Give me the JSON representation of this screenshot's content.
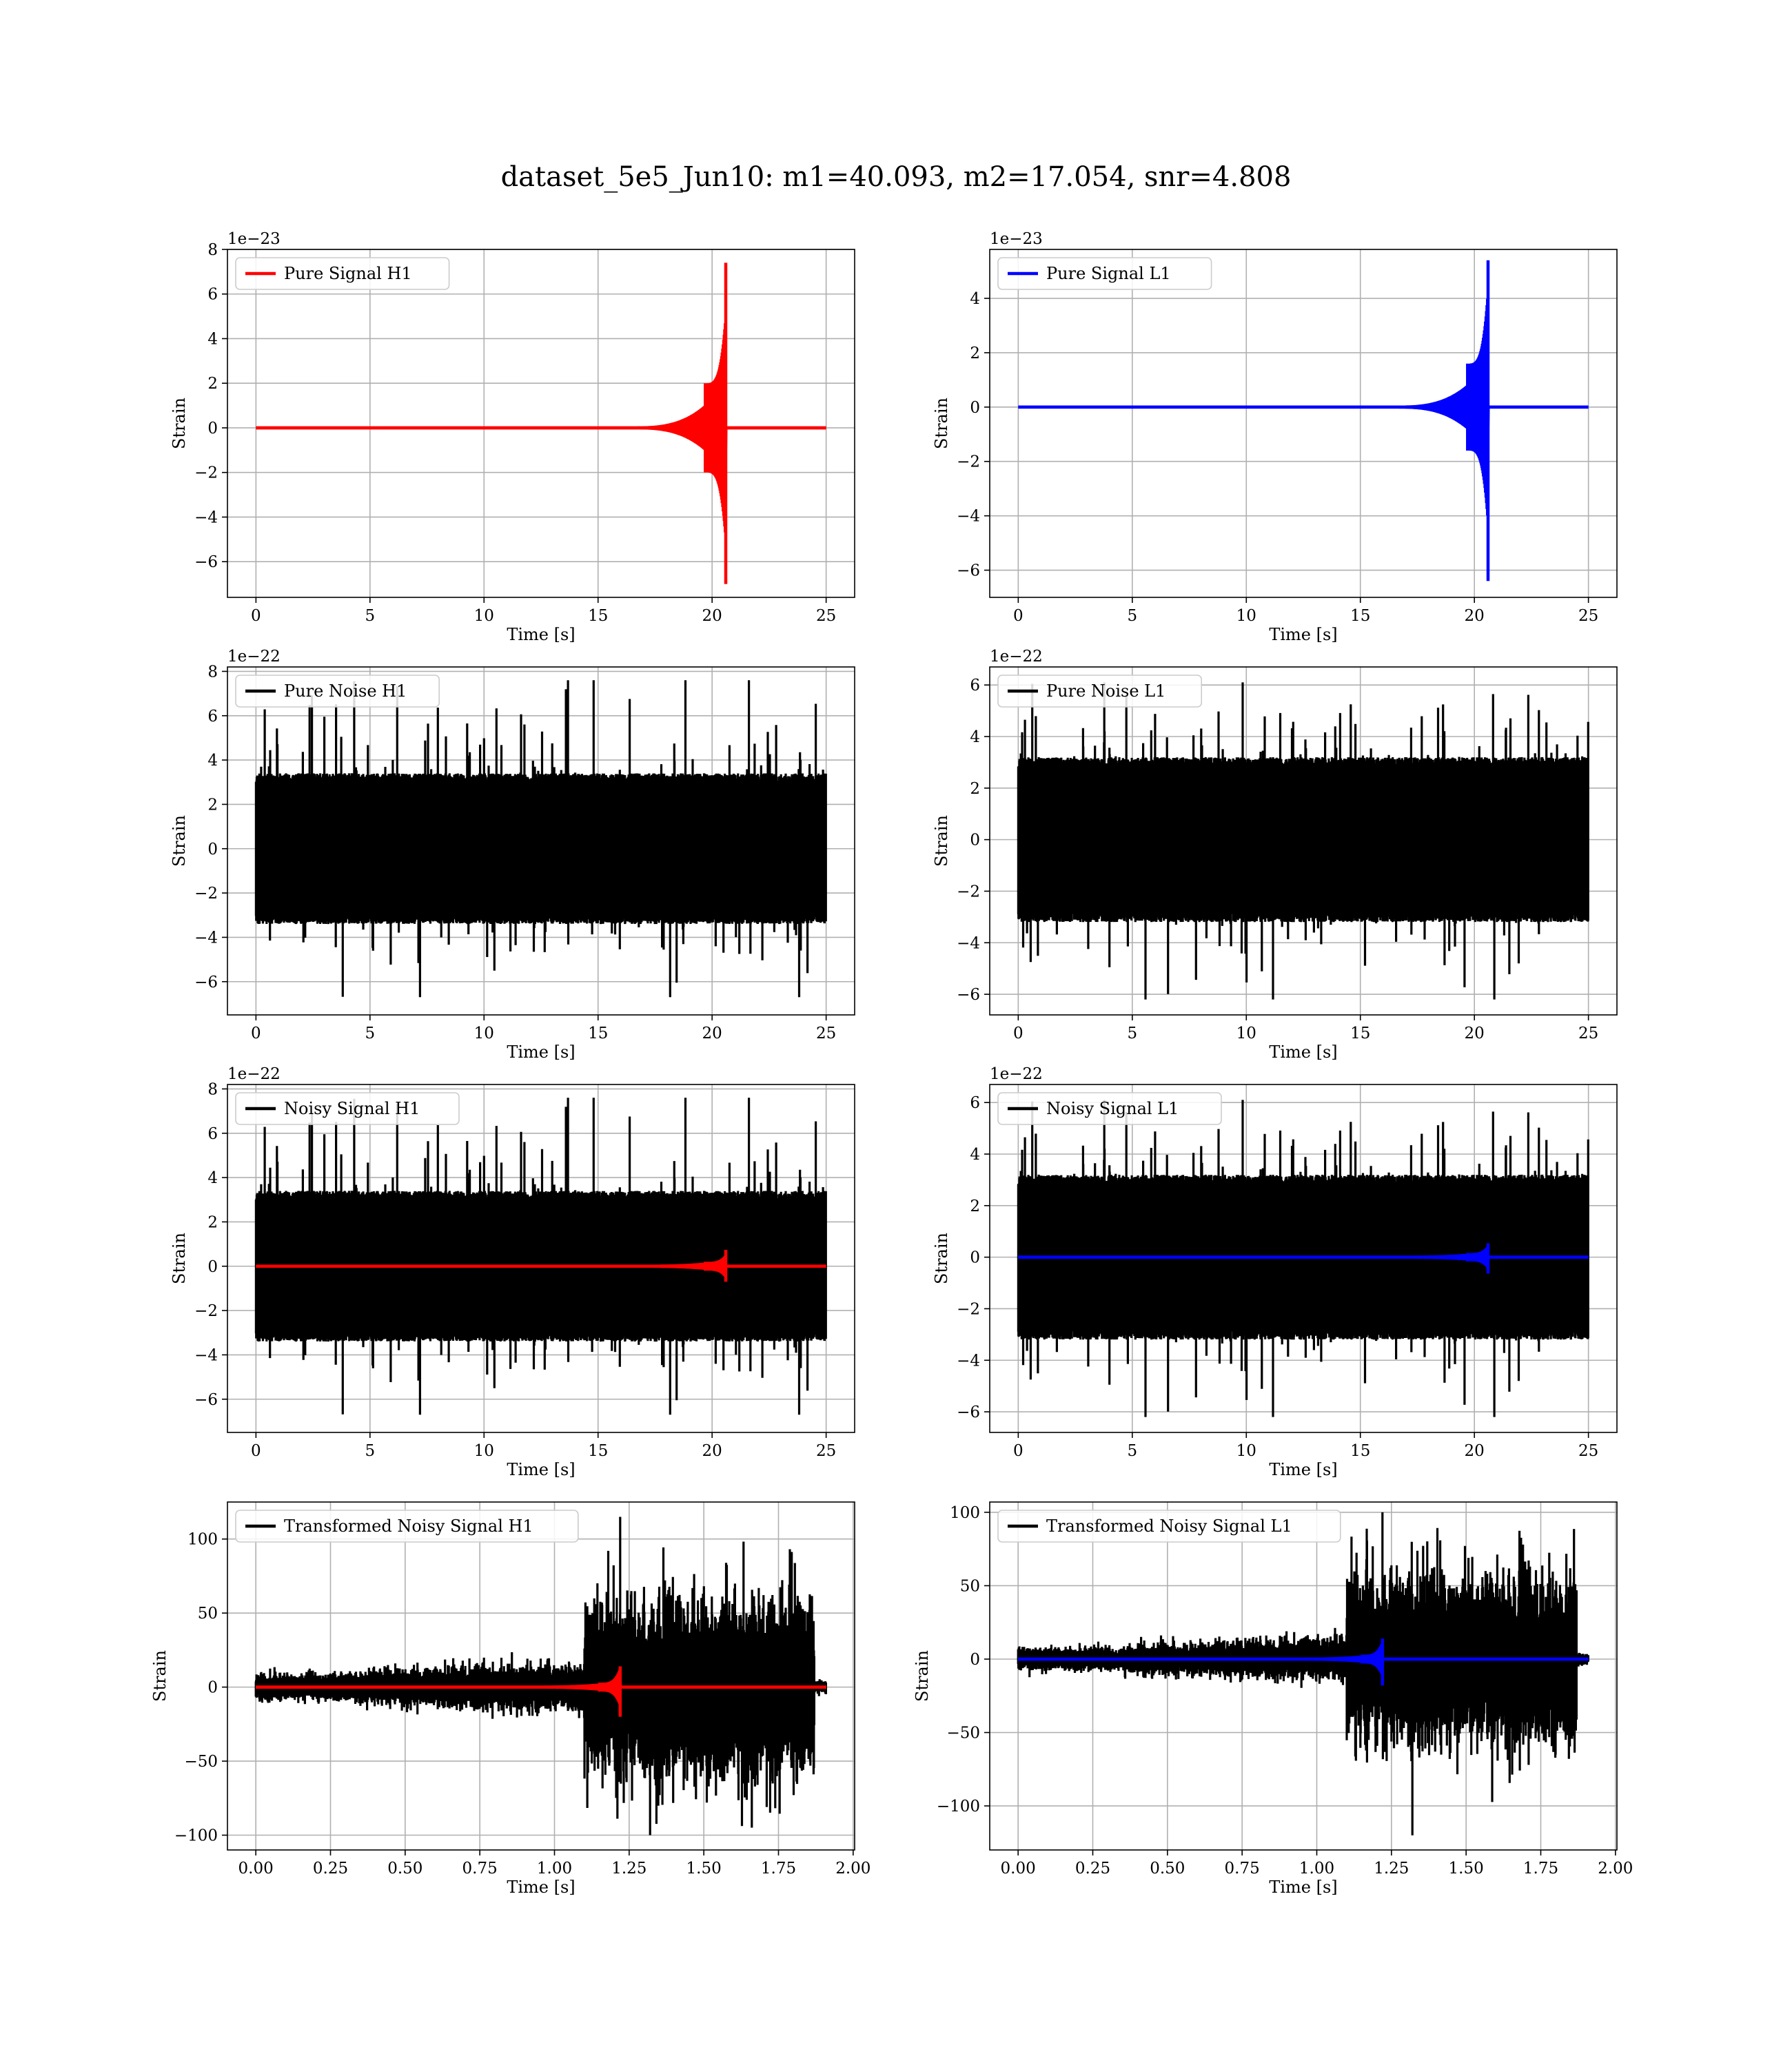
{
  "figure": {
    "title": "dataset_5e5_Jun10: m1=40.093, m2=17.054, snr=4.808"
  },
  "chart_data": [
    {
      "id": "pure-signal-h1",
      "type": "line",
      "ylabel": "Strain",
      "xlabel": "Time [s]",
      "offset_text": "1e−23",
      "xlim": [
        -1.25,
        26.25
      ],
      "ylim": [
        -7.6,
        8.0
      ],
      "xticks": [
        0,
        5,
        10,
        15,
        20,
        25
      ],
      "xtick_labels": [
        "0",
        "5",
        "10",
        "15",
        "20",
        "25"
      ],
      "yticks": [
        -6,
        -4,
        -2,
        0,
        2,
        4,
        6,
        8
      ],
      "ytick_labels": [
        "−6",
        "−4",
        "−2",
        "0",
        "2",
        "4",
        "6",
        "8"
      ],
      "series": [
        {
          "name": "Pure Signal H1",
          "color": "#ff0000",
          "kind": "chirp",
          "t_start": 0,
          "t_end": 25,
          "t_merge": 20.6,
          "peak_pos": 7.4,
          "peak_neg": -7.0,
          "inspiral_amp": 2.0,
          "tail_amp": 0.0
        }
      ]
    },
    {
      "id": "pure-signal-l1",
      "type": "line",
      "ylabel": "Strain",
      "xlabel": "Time [s]",
      "offset_text": "1e−23",
      "xlim": [
        -1.25,
        26.25
      ],
      "ylim": [
        -7.0,
        5.8
      ],
      "xticks": [
        0,
        5,
        10,
        15,
        20,
        25
      ],
      "xtick_labels": [
        "0",
        "5",
        "10",
        "15",
        "20",
        "25"
      ],
      "yticks": [
        -6,
        -4,
        -2,
        0,
        2,
        4
      ],
      "ytick_labels": [
        "−6",
        "−4",
        "−2",
        "0",
        "2",
        "4"
      ],
      "series": [
        {
          "name": "Pure Signal L1",
          "color": "#0000ff",
          "kind": "chirp",
          "t_start": 0,
          "t_end": 25,
          "t_merge": 20.6,
          "peak_pos": 5.4,
          "peak_neg": -6.4,
          "inspiral_amp": 1.6,
          "tail_amp": 0.0
        }
      ]
    },
    {
      "id": "pure-noise-h1",
      "type": "line",
      "ylabel": "Strain",
      "xlabel": "Time [s]",
      "offset_text": "1e−22",
      "xlim": [
        -1.25,
        26.25
      ],
      "ylim": [
        -7.5,
        8.2
      ],
      "xticks": [
        0,
        5,
        10,
        15,
        20,
        25
      ],
      "xtick_labels": [
        "0",
        "5",
        "10",
        "15",
        "20",
        "25"
      ],
      "yticks": [
        -6,
        -4,
        -2,
        0,
        2,
        4,
        6,
        8
      ],
      "ytick_labels": [
        "−6",
        "−4",
        "−2",
        "0",
        "2",
        "4",
        "6",
        "8"
      ],
      "series": [
        {
          "name": "Pure Noise H1",
          "color": "#000000",
          "kind": "noise",
          "t_start": 0,
          "t_end": 25,
          "band": 3.4,
          "max": 7.6,
          "min": -6.7,
          "seed": 11
        }
      ]
    },
    {
      "id": "pure-noise-l1",
      "type": "line",
      "ylabel": "Strain",
      "xlabel": "Time [s]",
      "offset_text": "1e−22",
      "xlim": [
        -1.25,
        26.25
      ],
      "ylim": [
        -6.8,
        6.7
      ],
      "xticks": [
        0,
        5,
        10,
        15,
        20,
        25
      ],
      "xtick_labels": [
        "0",
        "5",
        "10",
        "15",
        "20",
        "25"
      ],
      "yticks": [
        -6,
        -4,
        -2,
        0,
        2,
        4,
        6
      ],
      "ytick_labels": [
        "−6",
        "−4",
        "−2",
        "0",
        "2",
        "4",
        "6"
      ],
      "series": [
        {
          "name": "Pure Noise L1",
          "color": "#000000",
          "kind": "noise",
          "t_start": 0,
          "t_end": 25,
          "band": 3.2,
          "max": 6.1,
          "min": -6.2,
          "seed": 23
        }
      ]
    },
    {
      "id": "noisy-signal-h1",
      "type": "line",
      "ylabel": "Strain",
      "xlabel": "Time [s]",
      "offset_text": "1e−22",
      "xlim": [
        -1.25,
        26.25
      ],
      "ylim": [
        -7.5,
        8.2
      ],
      "xticks": [
        0,
        5,
        10,
        15,
        20,
        25
      ],
      "xtick_labels": [
        "0",
        "5",
        "10",
        "15",
        "20",
        "25"
      ],
      "yticks": [
        -6,
        -4,
        -2,
        0,
        2,
        4,
        6,
        8
      ],
      "ytick_labels": [
        "−6",
        "−4",
        "−2",
        "0",
        "2",
        "4",
        "6",
        "8"
      ],
      "series": [
        {
          "name": "Noisy Signal H1",
          "color": "#000000",
          "kind": "noise",
          "t_start": 0,
          "t_end": 25,
          "band": 3.4,
          "max": 7.6,
          "min": -6.7,
          "seed": 11
        },
        {
          "name": "",
          "color": "#ff0000",
          "kind": "chirp",
          "t_start": 0,
          "t_end": 25,
          "t_merge": 20.6,
          "peak_pos": 0.74,
          "peak_neg": -0.7,
          "inspiral_amp": 0.2,
          "tail_amp": 0.0
        }
      ]
    },
    {
      "id": "noisy-signal-l1",
      "type": "line",
      "ylabel": "Strain",
      "xlabel": "Time [s]",
      "offset_text": "1e−22",
      "xlim": [
        -1.25,
        26.25
      ],
      "ylim": [
        -6.8,
        6.7
      ],
      "xticks": [
        0,
        5,
        10,
        15,
        20,
        25
      ],
      "xtick_labels": [
        "0",
        "5",
        "10",
        "15",
        "20",
        "25"
      ],
      "yticks": [
        -6,
        -4,
        -2,
        0,
        2,
        4,
        6
      ],
      "ytick_labels": [
        "−6",
        "−4",
        "−2",
        "0",
        "2",
        "4",
        "6"
      ],
      "series": [
        {
          "name": "Noisy Signal L1",
          "color": "#000000",
          "kind": "noise",
          "t_start": 0,
          "t_end": 25,
          "band": 3.2,
          "max": 6.1,
          "min": -6.2,
          "seed": 23
        },
        {
          "name": "",
          "color": "#0000ff",
          "kind": "chirp",
          "t_start": 0,
          "t_end": 25,
          "t_merge": 20.6,
          "peak_pos": 0.54,
          "peak_neg": -0.64,
          "inspiral_amp": 0.16,
          "tail_amp": 0.0
        }
      ]
    },
    {
      "id": "transformed-noisy-signal-h1",
      "type": "line",
      "ylabel": "Strain",
      "xlabel": "Time [s]",
      "offset_text": "",
      "xlim": [
        -0.095,
        2.005
      ],
      "ylim": [
        -110,
        125
      ],
      "xticks": [
        0,
        0.25,
        0.5,
        0.75,
        1.0,
        1.25,
        1.5,
        1.75,
        2.0
      ],
      "xtick_labels": [
        "0.00",
        "0.25",
        "0.50",
        "0.75",
        "1.00",
        "1.25",
        "1.50",
        "1.75",
        "2.00"
      ],
      "yticks": [
        -100,
        -50,
        0,
        50,
        100
      ],
      "ytick_labels": [
        "−100",
        "−50",
        "0",
        "50",
        "100"
      ],
      "series": [
        {
          "name": "Transformed Noisy Signal H1",
          "color": "#000000",
          "kind": "whitened",
          "t_start": 0,
          "t_end": 1.91,
          "t_jump": 1.1,
          "t_end_loud": 1.87,
          "band_quiet": 8,
          "band_loud": 38,
          "max": 115,
          "min": -100,
          "seed": 5
        },
        {
          "name": "",
          "color": "#ff0000",
          "kind": "chirp",
          "t_start": 0,
          "t_end": 1.91,
          "t_merge": 1.22,
          "peak_pos": 14,
          "peak_neg": -20,
          "inspiral_amp": 3,
          "tail_amp": 0.0
        }
      ]
    },
    {
      "id": "transformed-noisy-signal-l1",
      "type": "line",
      "ylabel": "Strain",
      "xlabel": "Time [s]",
      "offset_text": "",
      "xlim": [
        -0.095,
        2.005
      ],
      "ylim": [
        -130,
        107
      ],
      "xticks": [
        0,
        0.25,
        0.5,
        0.75,
        1.0,
        1.25,
        1.5,
        1.75,
        2.0
      ],
      "xtick_labels": [
        "0.00",
        "0.25",
        "0.50",
        "0.75",
        "1.00",
        "1.25",
        "1.50",
        "1.75",
        "2.00"
      ],
      "yticks": [
        -100,
        -50,
        0,
        50,
        100
      ],
      "ytick_labels": [
        "−100",
        "−50",
        "0",
        "50",
        "100"
      ],
      "series": [
        {
          "name": "Transformed Noisy Signal L1",
          "color": "#000000",
          "kind": "whitened",
          "t_start": 0,
          "t_end": 1.91,
          "t_jump": 1.1,
          "t_end_loud": 1.87,
          "band_quiet": 7,
          "band_loud": 36,
          "max": 100,
          "min": -120,
          "seed": 9
        },
        {
          "name": "",
          "color": "#0000ff",
          "kind": "chirp",
          "t_start": 0,
          "t_end": 1.91,
          "t_merge": 1.22,
          "peak_pos": 14,
          "peak_neg": -18,
          "inspiral_amp": 3,
          "tail_amp": 0.0
        }
      ]
    }
  ]
}
